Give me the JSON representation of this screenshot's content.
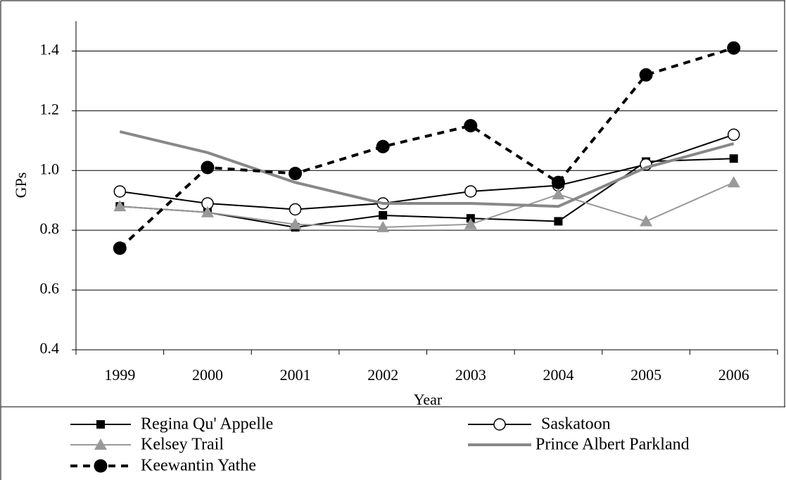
{
  "chart_data": {
    "type": "line",
    "x_label": "Year",
    "y_label": "GPs",
    "categories": [
      "1999",
      "2000",
      "2001",
      "2002",
      "2003",
      "2004",
      "2005",
      "2006"
    ],
    "ylim": [
      0.4,
      1.5
    ],
    "yticks": [
      0.4,
      0.6,
      0.8,
      {
        "value": 1,
        "label": "1.0"
      },
      1.2,
      1.4
    ],
    "grid": true,
    "series": [
      {
        "name": "Regina Qu' Appelle",
        "color": "#000000",
        "marker": "square",
        "dashed": false,
        "values": [
          0.88,
          0.86,
          0.81,
          0.85,
          0.84,
          0.83,
          1.03,
          1.04
        ]
      },
      {
        "name": "Saskatoon",
        "color": "#000000",
        "marker": "circle-open",
        "dashed": false,
        "values": [
          0.93,
          0.89,
          0.87,
          0.89,
          0.93,
          0.95,
          1.02,
          1.12
        ]
      },
      {
        "name": "Kelsey Trail",
        "color": "#999999",
        "marker": "triangle",
        "dashed": false,
        "values": [
          0.88,
          0.86,
          0.82,
          0.81,
          0.82,
          0.92,
          0.83,
          0.96
        ]
      },
      {
        "name": "Prince Albert Parkland",
        "color": "#888888",
        "marker": "none",
        "dashed": false,
        "values": [
          1.13,
          1.06,
          0.96,
          0.89,
          0.89,
          0.88,
          1.01,
          1.09
        ]
      },
      {
        "name": "Keewantin Yathe",
        "color": "#000000",
        "marker": "circle",
        "dashed": true,
        "values": [
          0.74,
          1.01,
          0.99,
          1.08,
          1.15,
          0.96,
          1.32,
          1.41
        ]
      }
    ]
  }
}
